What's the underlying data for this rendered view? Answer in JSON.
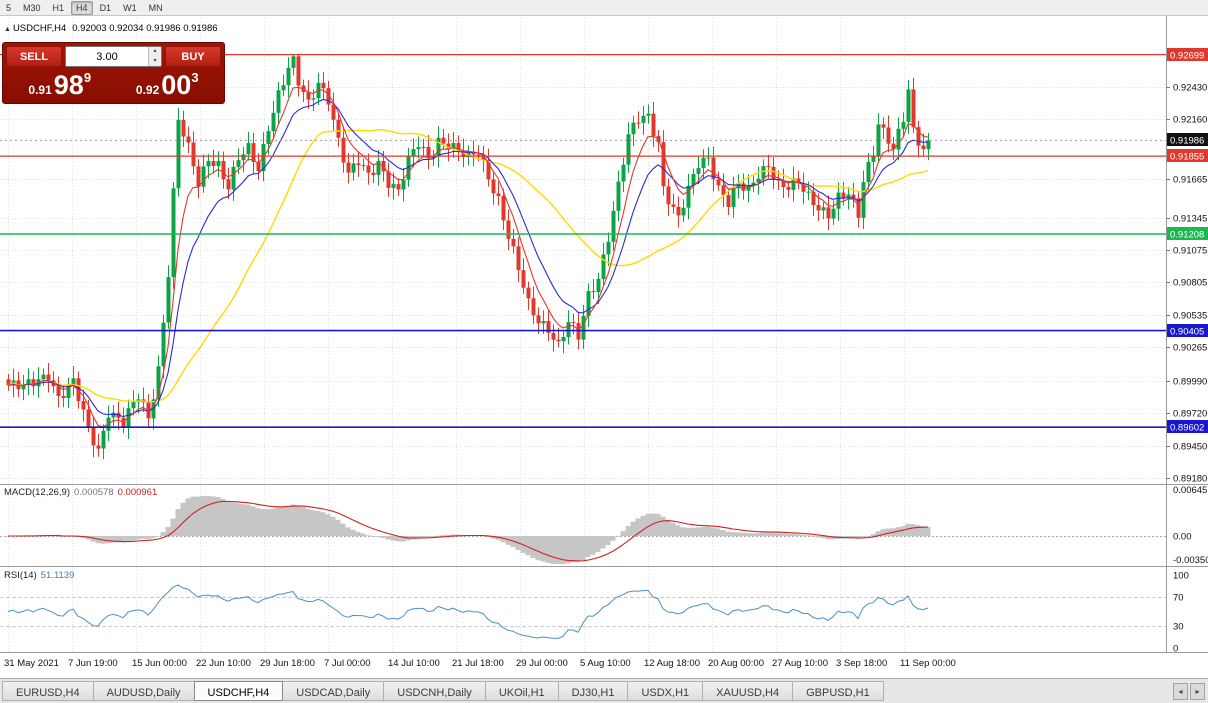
{
  "toolbar": {
    "timeframes": [
      "5",
      "M30",
      "H1",
      "H4",
      "D1",
      "W1",
      "MN"
    ],
    "active": "H4"
  },
  "chart_header": {
    "marker": "▲",
    "symbol": "USDCHF,H4",
    "ohlc": "0.92003 0.92034 0.91986 0.91986"
  },
  "trade_panel": {
    "sell_label": "SELL",
    "buy_label": "BUY",
    "volume": "3.00",
    "bid": {
      "prefix": "0.91",
      "big": "98",
      "sup": "9"
    },
    "ask": {
      "prefix": "0.92",
      "big": "00",
      "sup": "3"
    }
  },
  "indicators": {
    "macd": {
      "name": "MACD(12,26,9)",
      "value1": "0.000578",
      "value2": "0.000961",
      "axis": [
        "0.006451",
        "0.00",
        "-0.003507"
      ],
      "params": [
        12,
        26,
        9
      ]
    },
    "rsi": {
      "name": "RSI(14)",
      "value": "51.1139",
      "axis": [
        "100",
        "70",
        "30",
        "0"
      ],
      "levels": [
        70,
        30
      ],
      "period": 14
    }
  },
  "time_axis": [
    "31 May 2021",
    "7 Jun 19:00",
    "15 Jun 00:00",
    "22 Jun 10:00",
    "29 Jun 18:00",
    "7 Jul 00:00",
    "14 Jul 10:00",
    "21 Jul 18:00",
    "29 Jul 00:00",
    "5 Aug 10:00",
    "12 Aug 18:00",
    "20 Aug 00:00",
    "27 Aug 10:00",
    "3 Sep 18:00",
    "11 Sep 00:00"
  ],
  "tabs": [
    "EURUSD,H4",
    "AUDUSD,Daily",
    "USDCHF,H4",
    "USDCAD,Daily",
    "USDCNH,Daily",
    "UKOil,H1",
    "DJ30,H1",
    "USDX,H1",
    "XAUUSD,H4",
    "GBPUSD,H1"
  ],
  "active_tab": "USDCHF,H4",
  "icons": {
    "tabs_scroll_left": "◂",
    "tabs_scroll_right": "▸",
    "volume_up": "▴",
    "volume_down": "▾"
  },
  "chart_data": {
    "type": "candlestick",
    "symbol": "USDCHF",
    "timeframe": "H4",
    "bars": 185,
    "price_max": 0.9297,
    "price_min": 0.8913,
    "last_close": 0.91986,
    "current_price_label": "0.91986",
    "price_gridlines": [
      "0.92430",
      "0.92160",
      "0.91665",
      "0.91345",
      "0.91075",
      "0.90805",
      "0.90535",
      "0.90265",
      "0.89990",
      "0.89720",
      "0.89450",
      "0.89180"
    ],
    "levels": [
      {
        "label": "0.92699",
        "price": 0.92699,
        "color": "#e2382c",
        "width": 1.2
      },
      {
        "label": "0.91855",
        "price": 0.91855,
        "color": "#e2382c",
        "width": 1.2
      },
      {
        "label": "0.91208",
        "price": 0.91208,
        "color": "#19b94e",
        "width": 1.4
      },
      {
        "label": "0.90405",
        "price": 0.90405,
        "color": "#1717d0",
        "width": 1.6
      },
      {
        "label": "0.89602",
        "price": 0.89602,
        "color": "#1717d0",
        "width": 1.6
      }
    ],
    "colors": {
      "candle_up": "#0ba344",
      "candle_down": "#e2382c",
      "ma_fast": "#e2382c",
      "ma_mid": "#2a2ad8",
      "ma_slow": "#ffd900",
      "macd_hist": "#c6c6c6",
      "macd_signal": "#d42020",
      "rsi_line": "#4a90c4",
      "current_badge": "#111111"
    },
    "moving_averages": [
      {
        "key": "ma_fast",
        "period": 6,
        "type": "ema",
        "width": 1.1
      },
      {
        "key": "ma_mid",
        "period": 12,
        "type": "ema",
        "width": 1.1
      },
      {
        "key": "ma_slow",
        "period": 30,
        "type": "sma",
        "width": 1.4
      }
    ],
    "close_path": [
      [
        0,
        0.8995
      ],
      [
        3,
        0.8992
      ],
      [
        6,
        0.9
      ],
      [
        8,
        0.9006
      ],
      [
        10,
        0.8985
      ],
      [
        13,
        0.8996
      ],
      [
        16,
        0.8958
      ],
      [
        18,
        0.8942
      ],
      [
        20,
        0.8975
      ],
      [
        23,
        0.8963
      ],
      [
        26,
        0.8985
      ],
      [
        28,
        0.8968
      ],
      [
        30,
        0.901
      ],
      [
        32,
        0.909
      ],
      [
        33,
        0.9155
      ],
      [
        34,
        0.9215
      ],
      [
        36,
        0.919
      ],
      [
        38,
        0.9162
      ],
      [
        40,
        0.9185
      ],
      [
        42,
        0.918
      ],
      [
        44,
        0.916
      ],
      [
        46,
        0.9182
      ],
      [
        48,
        0.919
      ],
      [
        50,
        0.9175
      ],
      [
        52,
        0.9212
      ],
      [
        54,
        0.9238
      ],
      [
        57,
        0.9268
      ],
      [
        58,
        0.9245
      ],
      [
        60,
        0.9228
      ],
      [
        62,
        0.9248
      ],
      [
        64,
        0.9235
      ],
      [
        66,
        0.9198
      ],
      [
        68,
        0.9168
      ],
      [
        70,
        0.918
      ],
      [
        72,
        0.917
      ],
      [
        74,
        0.9182
      ],
      [
        76,
        0.9165
      ],
      [
        78,
        0.9155
      ],
      [
        80,
        0.918
      ],
      [
        82,
        0.9196
      ],
      [
        84,
        0.9185
      ],
      [
        86,
        0.92
      ],
      [
        88,
        0.9195
      ],
      [
        90,
        0.9188
      ],
      [
        92,
        0.9183
      ],
      [
        94,
        0.919
      ],
      [
        96,
        0.917
      ],
      [
        98,
        0.915
      ],
      [
        100,
        0.9118
      ],
      [
        102,
        0.909
      ],
      [
        104,
        0.9062
      ],
      [
        106,
        0.905
      ],
      [
        108,
        0.9044
      ],
      [
        110,
        0.9028
      ],
      [
        112,
        0.9046
      ],
      [
        114,
        0.9034
      ],
      [
        116,
        0.907
      ],
      [
        118,
        0.9086
      ],
      [
        120,
        0.912
      ],
      [
        122,
        0.916
      ],
      [
        124,
        0.92
      ],
      [
        126,
        0.9216
      ],
      [
        128,
        0.922
      ],
      [
        130,
        0.9198
      ],
      [
        131,
        0.916
      ],
      [
        133,
        0.914
      ],
      [
        134,
        0.9132
      ],
      [
        136,
        0.9156
      ],
      [
        138,
        0.918
      ],
      [
        140,
        0.9186
      ],
      [
        142,
        0.916
      ],
      [
        144,
        0.9146
      ],
      [
        146,
        0.916
      ],
      [
        148,
        0.9156
      ],
      [
        150,
        0.9172
      ],
      [
        152,
        0.918
      ],
      [
        154,
        0.9162
      ],
      [
        156,
        0.9158
      ],
      [
        158,
        0.9162
      ],
      [
        160,
        0.9152
      ],
      [
        162,
        0.9145
      ],
      [
        164,
        0.9138
      ],
      [
        166,
        0.915
      ],
      [
        168,
        0.9152
      ],
      [
        170,
        0.9136
      ],
      [
        171,
        0.9165
      ],
      [
        173,
        0.9192
      ],
      [
        174,
        0.9215
      ],
      [
        176,
        0.92
      ],
      [
        177,
        0.919
      ],
      [
        179,
        0.9215
      ],
      [
        180,
        0.9238
      ],
      [
        181,
        0.9205
      ],
      [
        183,
        0.9192
      ],
      [
        184,
        0.91986
      ]
    ]
  }
}
